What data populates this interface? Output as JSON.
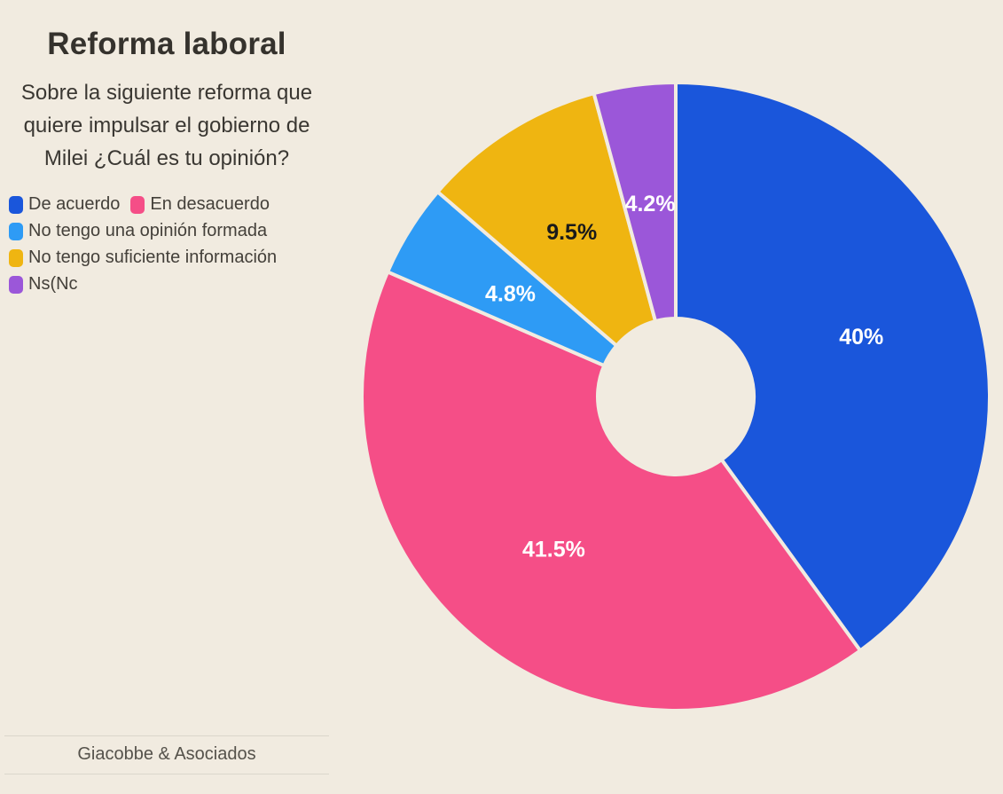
{
  "header": {
    "title": "Reforma laboral",
    "subtitle": "Sobre la siguiente reforma que quiere impulsar el gobierno de Milei ¿Cuál es tu opinión?"
  },
  "footer": {
    "source": "Giacobbe & Asociados"
  },
  "colors": {
    "background": "#F1EBE0",
    "title_text": "#35322D",
    "legend_text": "#44403A",
    "footer_text": "#55524B",
    "divider": "#DBD6CB",
    "slice_gap": "#F1EBE0"
  },
  "chart_data": {
    "type": "pie",
    "variant": "donut",
    "title": "Reforma laboral",
    "subtitle": "Sobre la siguiente reforma que quiere impulsar el gobierno de Milei ¿Cuál es tu opinión?",
    "legend_position": "left",
    "start_angle_deg": 0,
    "direction": "clockwise",
    "categories": [
      "De acuerdo",
      "En desacuerdo",
      "No tengo una opinión formada",
      "No tengo suficiente información",
      "Ns(Nc"
    ],
    "values": [
      40,
      41.5,
      4.8,
      9.5,
      4.2
    ],
    "data_labels": [
      "40%",
      "41.5%",
      "4.8%",
      "9.5%",
      "4.2%"
    ],
    "slice_colors": [
      "#1A56DB",
      "#F54E87",
      "#2E9BF5",
      "#EFB511",
      "#9B57D9"
    ],
    "label_colors": [
      "#FFFFFF",
      "#FFFFFF",
      "#FFFFFF",
      "#1A1A1A",
      "#FFFFFF"
    ]
  }
}
